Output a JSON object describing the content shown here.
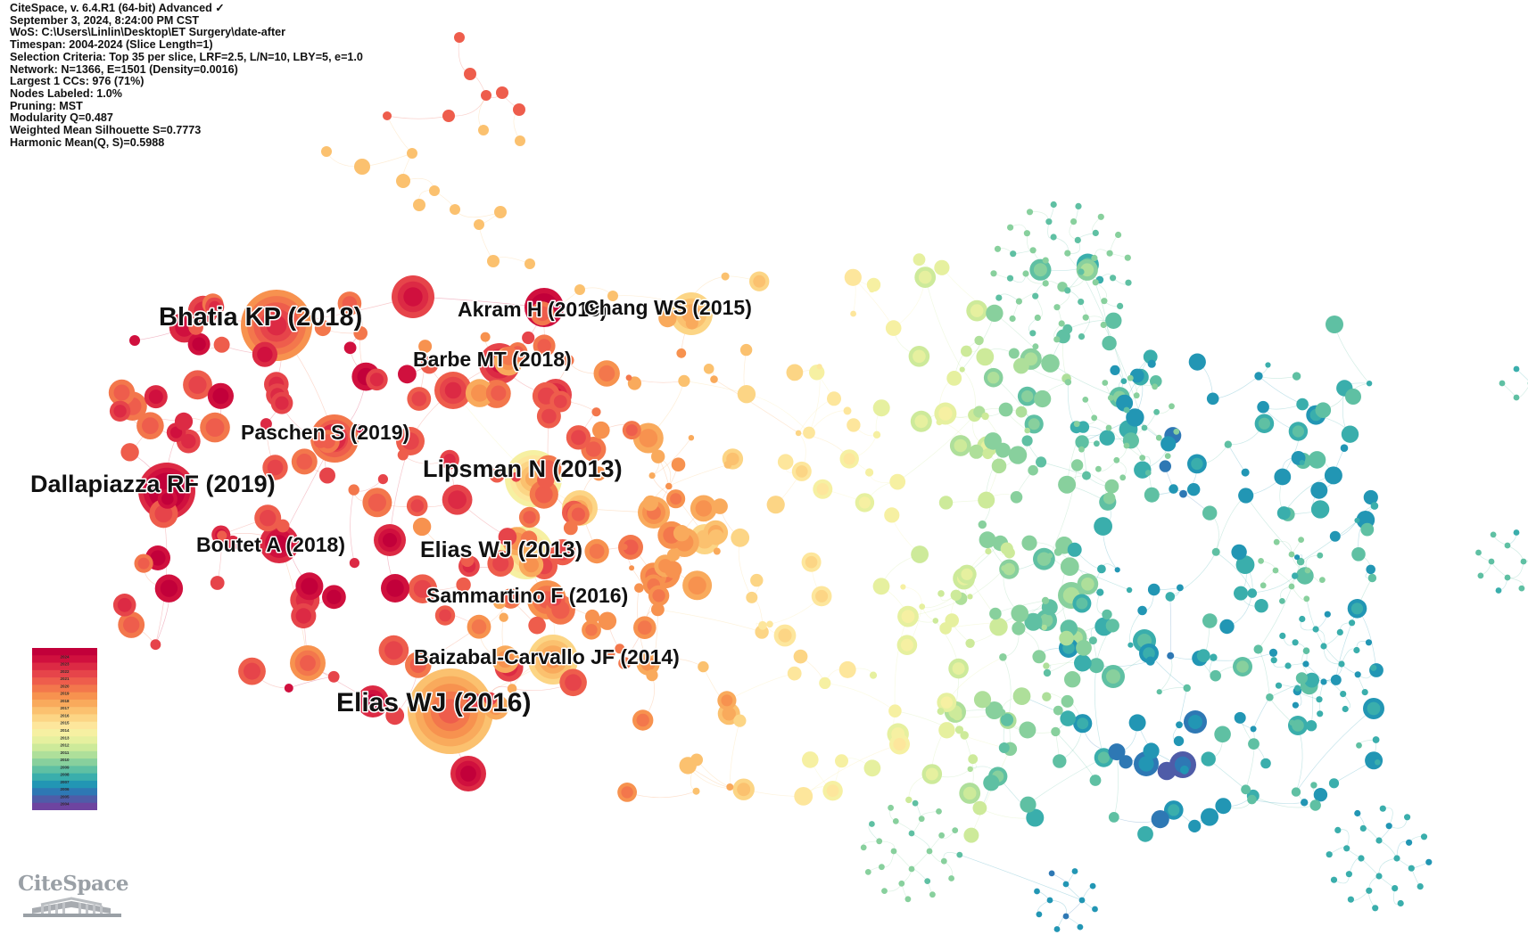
{
  "info": {
    "lines": [
      "CiteSpace, v. 6.4.R1 (64-bit) Advanced ✓",
      "September 3, 2024, 8:24:00 PM CST",
      "WoS: C:\\Users\\Linlin\\Desktop\\ET Surgery\\date-after",
      "Timespan: 2004-2024 (Slice Length=1)",
      "Selection Criteria: Top 35 per slice, LRF=2.5, L/N=10, LBY=5, e=1.0",
      "Network: N=1366, E=1501 (Density=0.0016)",
      "Largest 1 CCs: 976 (71%)",
      "Nodes Labeled: 1.0%",
      "Pruning: MST",
      "Modularity Q=0.487",
      "Weighted Mean Silhouette S=0.7773",
      "Harmonic Mean(Q, S)=0.5988"
    ]
  },
  "labels": [
    {
      "text": "Bhatia KP (2018)",
      "year": 2018
    },
    {
      "text": "Akram H (2018)",
      "year": 2018
    },
    {
      "text": "Chang WS (2015)",
      "year": 2015
    },
    {
      "text": "Barbe MT (2018)",
      "year": 2018
    },
    {
      "text": "Paschen S (2019)",
      "year": 2019
    },
    {
      "text": "Lipsman N (2013)",
      "year": 2013
    },
    {
      "text": "Dallapiazza RF (2019)",
      "year": 2019
    },
    {
      "text": "Elias WJ (2013)",
      "year": 2013
    },
    {
      "text": "Boutet A (2018)",
      "year": 2018
    },
    {
      "text": "Sammartino F (2016)",
      "year": 2016
    },
    {
      "text": "Baizabal-Carvallo JF (2014)",
      "year": 2014
    },
    {
      "text": "Elias WJ (2016)",
      "year": 2016
    }
  ],
  "legend": {
    "years": [
      "2024",
      "2023",
      "2022",
      "2021",
      "2020",
      "2019",
      "2018",
      "2017",
      "2016",
      "2015",
      "2014",
      "2013",
      "2012",
      "2011",
      "2010",
      "2009",
      "2008",
      "2007",
      "2006",
      "2005",
      "2004"
    ],
    "colors": [
      "#c2003a",
      "#d0103e",
      "#dc2a44",
      "#e6444a",
      "#ee5d4c",
      "#f3774c",
      "#f7924f",
      "#f9aa5c",
      "#fbc16f",
      "#fcd585",
      "#fde69c",
      "#f6f0a2",
      "#e6f09f",
      "#cdea9a",
      "#aedf9a",
      "#88d09d",
      "#5fc0a3",
      "#3aaeac",
      "#2296b4",
      "#2e78b4",
      "#4f5ca8",
      "#6e44a0"
    ]
  },
  "logo": {
    "text": "CiteSpace"
  }
}
